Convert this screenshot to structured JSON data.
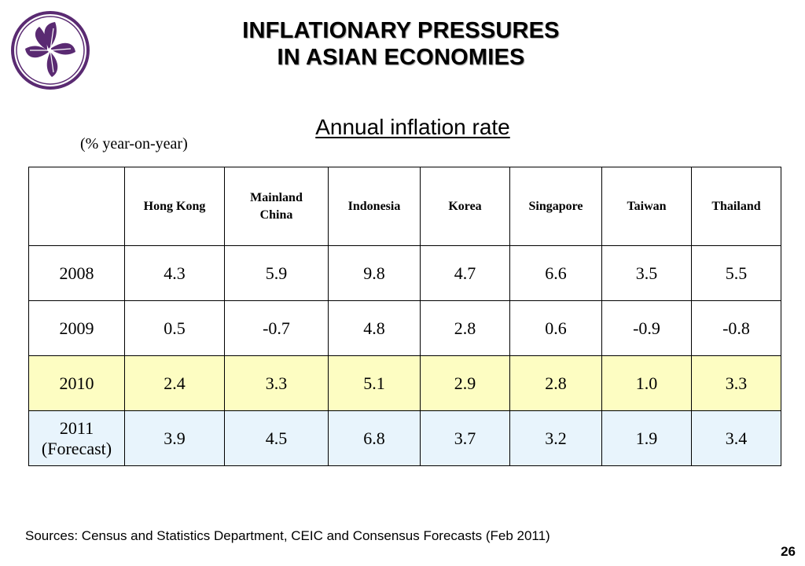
{
  "header": {
    "title_line1": "INFLATIONARY PRESSURES",
    "title_line2": "IN ASIAN ECONOMIES",
    "logo": "bauhinia-logo",
    "brand_color": "#5a2a72"
  },
  "subtitle": "Annual inflation rate",
  "unit": "(% year-on-year)",
  "table": {
    "corner": "",
    "columns": [
      {
        "label": "Hong Kong"
      },
      {
        "label": "Mainland China"
      },
      {
        "label": "Indonesia"
      },
      {
        "label": "Korea"
      },
      {
        "label": "Singapore"
      },
      {
        "label": "Taiwan"
      },
      {
        "label": "Thailand"
      }
    ],
    "rows": [
      {
        "year": "2008",
        "note": "",
        "values": [
          "4.3",
          "5.9",
          "9.8",
          "4.7",
          "6.6",
          "3.5",
          "5.5"
        ]
      },
      {
        "year": "2009",
        "note": "",
        "values": [
          "0.5",
          "-0.7",
          "4.8",
          "2.8",
          "0.6",
          "-0.9",
          "-0.8"
        ]
      },
      {
        "year": "2010",
        "note": "",
        "values": [
          "2.4",
          "3.3",
          "5.1",
          "2.9",
          "2.8",
          "1.0",
          "3.3"
        ]
      },
      {
        "year": "2011",
        "note": "(Forecast)",
        "values": [
          "3.9",
          "4.5",
          "6.8",
          "3.7",
          "3.2",
          "1.9",
          "3.4"
        ]
      }
    ],
    "highlight_colors": {
      "2010": "#fdfdc2",
      "2011": "#e8f4fc"
    }
  },
  "footer": {
    "sources": "Sources: Census and Statistics Department, CEIC and Consensus Forecasts (Feb 2011)",
    "page_number": "26"
  }
}
